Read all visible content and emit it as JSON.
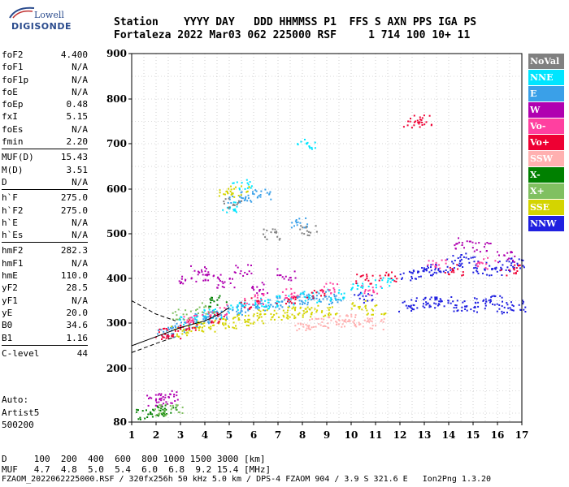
{
  "logo": {
    "line1": "Lowell",
    "line2": "DIGISONDE"
  },
  "header": {
    "line1": "Station    YYYY DAY   DDD HHMMSS P1  FFS S AXN PPS IGA PS",
    "line2": "Fortaleza 2022 Mar03 062 225000 RSF     1 714 100 10+ 11"
  },
  "params": {
    "group1": [
      {
        "k": "foF2",
        "v": "4.400"
      },
      {
        "k": "foF1",
        "v": "N/A"
      },
      {
        "k": "foF1p",
        "v": "N/A"
      },
      {
        "k": "foE",
        "v": "N/A"
      },
      {
        "k": "foEp",
        "v": "0.48"
      },
      {
        "k": "fxI",
        "v": "5.15"
      },
      {
        "k": "foEs",
        "v": "N/A"
      },
      {
        "k": "fmin",
        "v": "2.20"
      }
    ],
    "group2": [
      {
        "k": "MUF(D)",
        "v": "15.43"
      },
      {
        "k": "M(D)",
        "v": "3.51"
      },
      {
        "k": "D",
        "v": "N/A"
      }
    ],
    "group3": [
      {
        "k": "h`F",
        "v": "275.0"
      },
      {
        "k": "h`F2",
        "v": "275.0"
      },
      {
        "k": "h`E",
        "v": "N/A"
      },
      {
        "k": "h`Es",
        "v": "N/A"
      }
    ],
    "group4": [
      {
        "k": "hmF2",
        "v": "282.3"
      },
      {
        "k": "hmF1",
        "v": "N/A"
      },
      {
        "k": "hmE",
        "v": "110.0"
      },
      {
        "k": "yF2",
        "v": "28.5"
      },
      {
        "k": "yF1",
        "v": "N/A"
      },
      {
        "k": "yE",
        "v": "20.0"
      },
      {
        "k": "B0",
        "v": "34.6"
      },
      {
        "k": "B1",
        "v": "1.16"
      }
    ],
    "group5": [
      {
        "k": "C-level",
        "v": "44"
      }
    ]
  },
  "auto": {
    "line1": "Auto:",
    "line2": "Artist5",
    "line3": "500200"
  },
  "legend": [
    {
      "label": "NoVal",
      "color": "#808080"
    },
    {
      "label": "NNE",
      "color": "#00e5ff"
    },
    {
      "label": "E",
      "color": "#3aa0e8"
    },
    {
      "label": "W",
      "color": "#b000b0"
    },
    {
      "label": "Vo-",
      "color": "#ff40a0"
    },
    {
      "label": "Vo+",
      "color": "#ee0033"
    },
    {
      "label": "SSW",
      "color": "#ffb0b0"
    },
    {
      "label": "X-",
      "color": "#008000"
    },
    {
      "label": "X+",
      "color": "#80c060"
    },
    {
      "label": "SSE",
      "color": "#d4d400"
    },
    {
      "label": "NNW",
      "color": "#2020e0"
    }
  ],
  "dmuf": {
    "d_line": "D     100  200  400  600  800 1000 1500 3000 [km]",
    "muf_line": "MUF   4.7  4.8  5.0  5.4  6.0  6.8  9.2 15.4 [MHz]"
  },
  "footer": "FZAOM_2022062225000.RSF / 320fx256h 50 kHz 5.0 km / DPS-4 FZAOM 904 / 3.9 S 321.6 E   Ion2Png 1.3.20",
  "chart_data": {
    "type": "scatter",
    "title": "",
    "xlabel": "",
    "ylabel": "",
    "xlim": [
      1,
      17
    ],
    "ylim": [
      80,
      900
    ],
    "xticks": [
      1,
      2,
      3,
      4,
      5,
      6,
      7,
      8,
      9,
      10,
      11,
      12,
      13,
      14,
      15,
      16,
      17
    ],
    "yticks": [
      80,
      200,
      300,
      400,
      500,
      600,
      700,
      800,
      900
    ],
    "grid": true,
    "series": [
      {
        "name": "NNW",
        "color": "#2020e0",
        "points": [
          [
            12.3,
            410
          ],
          [
            12.8,
            415
          ],
          [
            13.3,
            420
          ],
          [
            13.8,
            425
          ],
          [
            14.3,
            440
          ],
          [
            14.8,
            445
          ],
          [
            15.3,
            425
          ],
          [
            15.8,
            420
          ],
          [
            16.3,
            430
          ],
          [
            16.8,
            435
          ],
          [
            12.3,
            340
          ],
          [
            12.8,
            345
          ],
          [
            13.3,
            348
          ],
          [
            13.8,
            350
          ],
          [
            14.3,
            340
          ],
          [
            14.8,
            338
          ],
          [
            15.3,
            345
          ],
          [
            15.8,
            350
          ],
          [
            16.3,
            335
          ],
          [
            16.8,
            340
          ],
          [
            10.5,
            360
          ]
        ]
      },
      {
        "name": "E",
        "color": "#3aa0e8",
        "points": [
          [
            2.3,
            282
          ],
          [
            2.8,
            292
          ],
          [
            3.3,
            300
          ],
          [
            3.8,
            310
          ],
          [
            4.3,
            318
          ],
          [
            4.8,
            322
          ],
          [
            5.3,
            330
          ],
          [
            5.8,
            336
          ],
          [
            6.3,
            340
          ],
          [
            6.8,
            345
          ],
          [
            7.3,
            350
          ],
          [
            7.8,
            355
          ],
          [
            8.3,
            358
          ],
          [
            8.8,
            360
          ],
          [
            9.3,
            355
          ],
          [
            5.3,
            580
          ],
          [
            5.8,
            585
          ],
          [
            6.3,
            590
          ],
          [
            7.8,
            525
          ]
        ]
      },
      {
        "name": "NNE",
        "color": "#00e5ff",
        "points": [
          [
            3.3,
            310
          ],
          [
            4.3,
            320
          ],
          [
            5.3,
            335
          ],
          [
            6.3,
            345
          ],
          [
            7.3,
            350
          ],
          [
            8.3,
            360
          ],
          [
            9.3,
            365
          ],
          [
            10.3,
            380
          ],
          [
            11.3,
            390
          ],
          [
            5.0,
            560
          ],
          [
            5.5,
            610
          ],
          [
            8.1,
            700
          ]
        ]
      },
      {
        "name": "SSE",
        "color": "#d4d400",
        "points": [
          [
            3.0,
            282
          ],
          [
            3.5,
            288
          ],
          [
            4.0,
            292
          ],
          [
            4.5,
            298
          ],
          [
            5.0,
            302
          ],
          [
            5.5,
            308
          ],
          [
            6.0,
            312
          ],
          [
            6.5,
            318
          ],
          [
            7.0,
            320
          ],
          [
            7.5,
            325
          ],
          [
            8.0,
            325
          ],
          [
            8.5,
            328
          ],
          [
            9.0,
            330
          ],
          [
            10.3,
            340
          ],
          [
            11.0,
            330
          ],
          [
            4.9,
            590
          ],
          [
            5.4,
            600
          ]
        ]
      },
      {
        "name": "W",
        "color": "#b000b0",
        "points": [
          [
            3.3,
            400
          ],
          [
            3.8,
            420
          ],
          [
            4.3,
            400
          ],
          [
            4.8,
            390
          ],
          [
            5.5,
            420
          ],
          [
            6.3,
            380
          ],
          [
            7.3,
            410
          ],
          [
            2.0,
            130
          ],
          [
            2.3,
            135
          ],
          [
            2.5,
            140
          ],
          [
            14.5,
            480
          ],
          [
            15.3,
            470
          ],
          [
            16.3,
            450
          ]
        ]
      },
      {
        "name": "Vo+",
        "color": "#ee0033",
        "points": [
          [
            2.3,
            278
          ],
          [
            2.6,
            280
          ],
          [
            3.3,
            298
          ],
          [
            4.5,
            315
          ],
          [
            5.8,
            345
          ],
          [
            7.3,
            355
          ],
          [
            8.5,
            365
          ],
          [
            10.5,
            400
          ],
          [
            11.5,
            405
          ],
          [
            12.5,
            750
          ],
          [
            12.9,
            755
          ],
          [
            14.2,
            420
          ],
          [
            16.5,
            420
          ]
        ]
      },
      {
        "name": "Vo-",
        "color": "#ff40a0",
        "points": [
          [
            3.5,
            310
          ],
          [
            4.5,
            330
          ],
          [
            6.0,
            355
          ],
          [
            7.5,
            370
          ],
          [
            9.0,
            380
          ],
          [
            10.8,
            375
          ],
          [
            13.5,
            430
          ],
          [
            15.5,
            435
          ]
        ]
      },
      {
        "name": "SSW",
        "color": "#ffb0b0",
        "points": [
          [
            8.0,
            298
          ],
          [
            8.5,
            300
          ],
          [
            9.0,
            302
          ],
          [
            9.5,
            305
          ],
          [
            10.0,
            310
          ],
          [
            10.5,
            305
          ],
          [
            11.0,
            300
          ]
        ]
      },
      {
        "name": "X-",
        "color": "#008000",
        "points": [
          [
            1.5,
            100
          ],
          [
            2.0,
            105
          ],
          [
            2.5,
            110
          ],
          [
            4.5,
            350
          ]
        ]
      },
      {
        "name": "X+",
        "color": "#80c060",
        "points": [
          [
            2.2,
            108
          ],
          [
            2.7,
            112
          ],
          [
            3.0,
            320
          ],
          [
            4.0,
            335
          ]
        ]
      },
      {
        "name": "NoVal",
        "color": "#808080",
        "points": [
          [
            5.1,
            570
          ],
          [
            6.7,
            500
          ],
          [
            8.2,
            510
          ]
        ]
      }
    ],
    "profile": {
      "name": "profile",
      "points": [
        [
          1.0,
          250
        ],
        [
          2.0,
          270
        ],
        [
          3.0,
          290
        ],
        [
          4.0,
          305
        ],
        [
          4.6,
          320
        ],
        [
          5.0,
          335
        ]
      ],
      "upper_dashed": [
        [
          1.0,
          350
        ],
        [
          2.0,
          320
        ],
        [
          2.8,
          305
        ]
      ],
      "lower_dashed": [
        [
          1.0,
          235
        ],
        [
          2.0,
          255
        ],
        [
          2.8,
          270
        ]
      ]
    }
  }
}
